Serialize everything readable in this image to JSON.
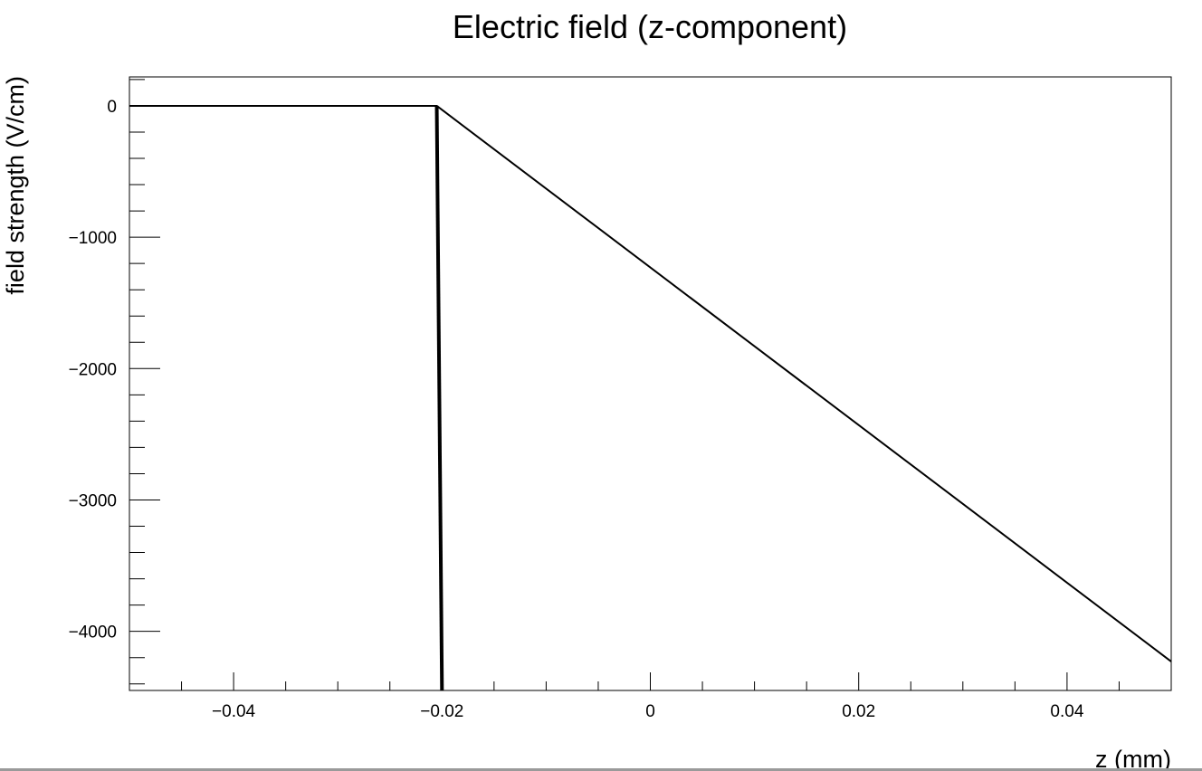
{
  "chart_data": {
    "type": "line",
    "title": "Electric field (z-component)",
    "xlabel": "z (mm)",
    "ylabel": "field strength (V/cm)",
    "xlim": [
      -0.05,
      0.05
    ],
    "ylim": [
      -4450,
      220
    ],
    "grid": false,
    "x_ticks": [
      {
        "value": -0.04,
        "label": "−0.04"
      },
      {
        "value": -0.02,
        "label": "−0.02"
      },
      {
        "value": 0,
        "label": "0"
      },
      {
        "value": 0.02,
        "label": "0.02"
      },
      {
        "value": 0.04,
        "label": "0.04"
      }
    ],
    "y_ticks": [
      {
        "value": 0,
        "label": "0"
      },
      {
        "value": -1000,
        "label": "−1000"
      },
      {
        "value": -2000,
        "label": "−2000"
      },
      {
        "value": -3000,
        "label": "−3000"
      },
      {
        "value": -4000,
        "label": "−4000"
      }
    ],
    "series": [
      {
        "points": [
          {
            "x": -0.05,
            "y": 0
          },
          {
            "x": -0.0205,
            "y": 0
          },
          {
            "x": -0.0205,
            "y": 0
          },
          {
            "x": 0.05,
            "y": -4230
          }
        ]
      },
      {
        "points": [
          {
            "x": -0.0205,
            "y": 0
          },
          {
            "x": -0.02,
            "y": -4450
          }
        ]
      }
    ]
  }
}
